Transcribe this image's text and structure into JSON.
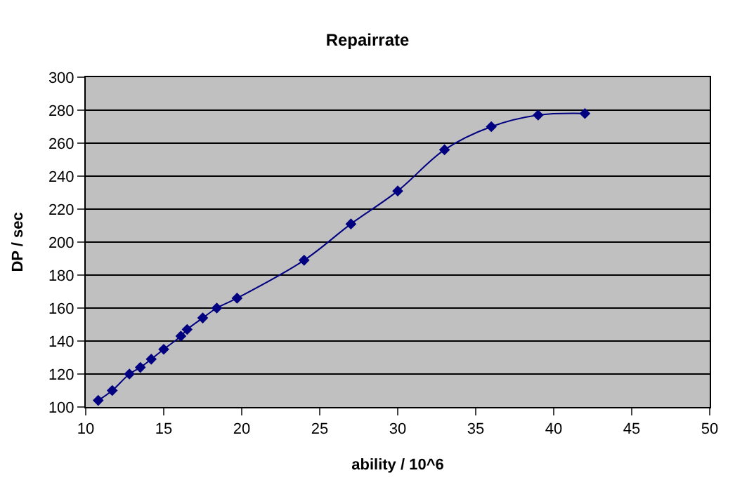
{
  "chart_data": {
    "type": "line",
    "title": "Repairrate",
    "xlabel": "ability / 10^6",
    "ylabel": "DP / sec",
    "x": [
      10.8,
      11.7,
      12.8,
      13.5,
      14.2,
      15,
      16.1,
      16.5,
      17.5,
      18.4,
      19.7,
      24,
      27,
      30,
      33,
      36,
      39,
      42
    ],
    "series": [
      {
        "color": "#000080",
        "values": [
          104,
          110,
          120,
          124,
          129,
          135,
          143,
          147,
          154,
          160,
          166,
          189,
          211,
          231,
          256,
          270,
          277,
          278
        ]
      }
    ],
    "xlim": [
      10,
      50
    ],
    "xticks": [
      10,
      15,
      20,
      25,
      30,
      35,
      40,
      45,
      50
    ],
    "ylim": [
      100,
      300
    ],
    "yticks": [
      100,
      120,
      140,
      160,
      180,
      200,
      220,
      240,
      260,
      280,
      300
    ],
    "grid": "y",
    "legend": false,
    "marker": "diamond",
    "line_style": "solid"
  }
}
